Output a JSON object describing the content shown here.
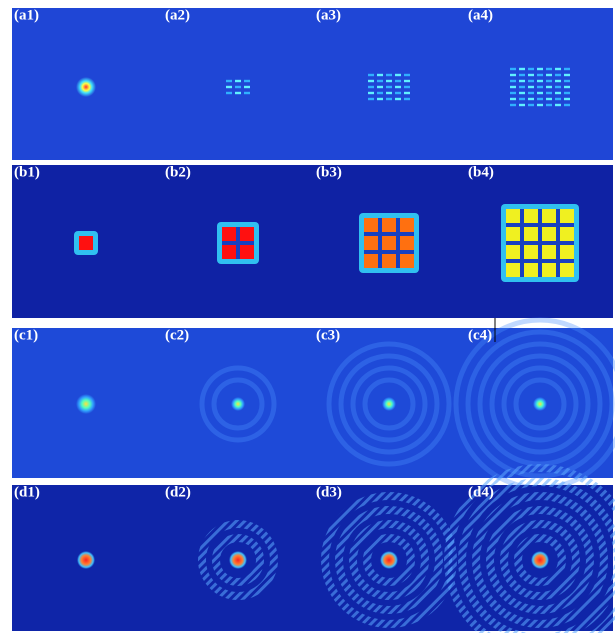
{
  "panels": [
    [
      "(a1)",
      "(a2)",
      "(a3)",
      "(a4)"
    ],
    [
      "(b1)",
      "(b2)",
      "(b3)",
      "(b4)"
    ],
    [
      "(c1)",
      "(c2)",
      "(c3)",
      "(c4)"
    ],
    [
      "(d1)",
      "(d2)",
      "(d3)",
      "(d4)"
    ]
  ]
}
